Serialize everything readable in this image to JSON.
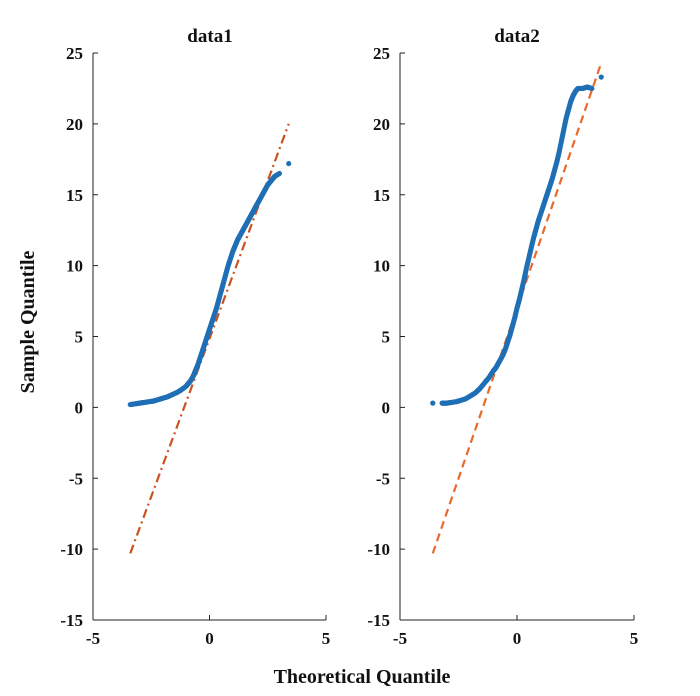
{
  "figure": {
    "xlabel": "Theoretical Quantile",
    "ylabel": "Sample Quantile"
  },
  "chart_data": [
    {
      "type": "scatter",
      "title": "data1",
      "xlim": [
        -5,
        5
      ],
      "ylim": [
        -15,
        25
      ],
      "xticks": [
        -5,
        0,
        5
      ],
      "yticks": [
        -15,
        -10,
        -5,
        0,
        5,
        10,
        15,
        20,
        25
      ],
      "grid": false,
      "points_color": "#1f6fb5",
      "line_color": "#c9531f",
      "reference_line": {
        "x": [
          -3.4,
          3.4
        ],
        "y": [
          -10.3,
          20.0
        ],
        "style": "dash-dot"
      },
      "series": [
        {
          "name": "data1",
          "x": [
            -3.4,
            -3.2,
            -3.0,
            -2.8,
            -2.6,
            -2.4,
            -2.2,
            -2.0,
            -1.8,
            -1.6,
            -1.4,
            -1.2,
            -1.0,
            -0.9,
            -0.8,
            -0.7,
            -0.6,
            -0.5,
            -0.4,
            -0.3,
            -0.2,
            -0.1,
            0.0,
            0.1,
            0.2,
            0.3,
            0.4,
            0.5,
            0.6,
            0.7,
            0.8,
            0.9,
            1.0,
            1.1,
            1.2,
            1.3,
            1.4,
            1.5,
            1.6,
            1.7,
            1.8,
            1.9,
            2.0,
            2.1,
            2.2,
            2.3,
            2.4,
            2.5,
            2.6,
            2.7,
            2.8,
            3.0,
            3.4
          ],
          "y": [
            0.2,
            0.25,
            0.3,
            0.35,
            0.4,
            0.45,
            0.55,
            0.65,
            0.75,
            0.9,
            1.05,
            1.25,
            1.5,
            1.7,
            1.9,
            2.2,
            2.6,
            3.0,
            3.5,
            4.0,
            4.5,
            5.0,
            5.5,
            6.0,
            6.5,
            7.0,
            7.6,
            8.2,
            8.8,
            9.4,
            10.0,
            10.5,
            11.0,
            11.4,
            11.8,
            12.1,
            12.4,
            12.7,
            13.0,
            13.3,
            13.6,
            13.9,
            14.2,
            14.5,
            14.8,
            15.1,
            15.4,
            15.7,
            15.9,
            16.1,
            16.3,
            16.5,
            17.2
          ]
        }
      ]
    },
    {
      "type": "scatter",
      "title": "data2",
      "xlim": [
        -5,
        5
      ],
      "ylim": [
        -15,
        25
      ],
      "xticks": [
        -5,
        0,
        5
      ],
      "yticks": [
        -15,
        -10,
        -5,
        0,
        5,
        10,
        15,
        20,
        25
      ],
      "grid": false,
      "points_color": "#1f6fb5",
      "line_color": "#e8692a",
      "reference_line": {
        "x": [
          -3.6,
          3.6
        ],
        "y": [
          -10.3,
          24.3
        ],
        "style": "dashed"
      },
      "series": [
        {
          "name": "data2",
          "x": [
            -3.6,
            -3.2,
            -3.0,
            -2.8,
            -2.6,
            -2.4,
            -2.2,
            -2.0,
            -1.8,
            -1.6,
            -1.4,
            -1.2,
            -1.0,
            -0.9,
            -0.8,
            -0.7,
            -0.6,
            -0.5,
            -0.4,
            -0.3,
            -0.2,
            -0.1,
            0.0,
            0.1,
            0.2,
            0.3,
            0.4,
            0.5,
            0.6,
            0.7,
            0.8,
            0.9,
            1.0,
            1.1,
            1.2,
            1.3,
            1.4,
            1.5,
            1.6,
            1.7,
            1.8,
            1.9,
            2.0,
            2.1,
            2.2,
            2.3,
            2.4,
            2.5,
            2.6,
            2.8,
            3.0,
            3.2,
            3.6
          ],
          "y": [
            0.3,
            0.3,
            0.3,
            0.35,
            0.4,
            0.5,
            0.6,
            0.8,
            1.0,
            1.3,
            1.7,
            2.1,
            2.6,
            2.8,
            3.1,
            3.4,
            3.7,
            4.1,
            4.6,
            5.1,
            5.7,
            6.3,
            7.0,
            7.6,
            8.3,
            9.0,
            9.8,
            10.5,
            11.2,
            11.9,
            12.5,
            13.1,
            13.6,
            14.1,
            14.6,
            15.1,
            15.6,
            16.1,
            16.7,
            17.3,
            18.0,
            18.8,
            19.6,
            20.4,
            21.0,
            21.6,
            22.0,
            22.3,
            22.5,
            22.5,
            22.6,
            22.5,
            23.3
          ]
        }
      ]
    }
  ]
}
